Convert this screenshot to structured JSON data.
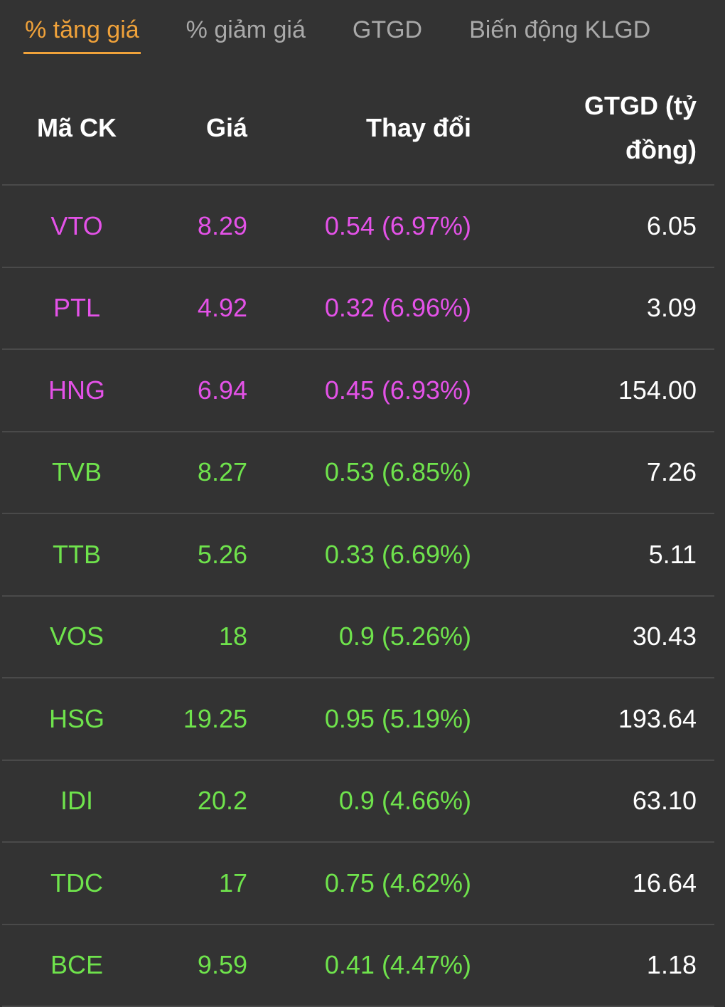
{
  "tabs": {
    "items": [
      "% tăng giá",
      "% giảm giá",
      "GTGD",
      "Biến động KLGD"
    ],
    "active": 0,
    "active_color": "#f0a23a",
    "color": "#a9a9a9"
  },
  "table": {
    "headers": [
      "Mã CK",
      "Giá",
      "Thay đổi",
      "GTGD (tỷ đồng)"
    ],
    "rows": [
      {
        "cells": [
          "VTO",
          "8.29",
          "0.54 (6.97%)",
          "6.05"
        ],
        "color": "#e452e8"
      },
      {
        "cells": [
          "PTL",
          "4.92",
          "0.32 (6.96%)",
          "3.09"
        ],
        "color": "#e452e8"
      },
      {
        "cells": [
          "HNG",
          "6.94",
          "0.45 (6.93%)",
          "154.00"
        ],
        "color": "#e452e8"
      },
      {
        "cells": [
          "TVB",
          "8.27",
          "0.53 (6.85%)",
          "7.26"
        ],
        "color": "#6fe34c"
      },
      {
        "cells": [
          "TTB",
          "5.26",
          "0.33 (6.69%)",
          "5.11"
        ],
        "color": "#6fe34c"
      },
      {
        "cells": [
          "VOS",
          "18",
          "0.9 (5.26%)",
          "30.43"
        ],
        "color": "#6fe34c"
      },
      {
        "cells": [
          "HSG",
          "19.25",
          "0.95 (5.19%)",
          "193.64"
        ],
        "color": "#6fe34c"
      },
      {
        "cells": [
          "IDI",
          "20.2",
          "0.9 (4.66%)",
          "63.10"
        ],
        "color": "#6fe34c"
      },
      {
        "cells": [
          "TDC",
          "17",
          "0.75 (4.62%)",
          "16.64"
        ],
        "color": "#6fe34c"
      },
      {
        "cells": [
          "BCE",
          "9.59",
          "0.41 (4.47%)",
          "1.18"
        ],
        "color": "#6fe34c"
      }
    ]
  }
}
